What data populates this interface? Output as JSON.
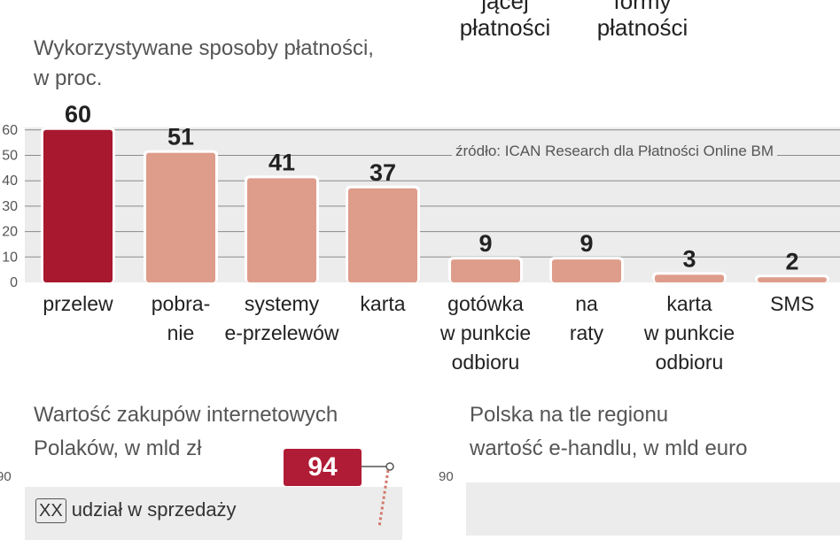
{
  "top": {
    "label1_line1": "jącej",
    "label1_line2": "płatności",
    "label2_line1": "formy",
    "label2_line2": "płatności"
  },
  "chart_data": [
    {
      "type": "bar",
      "title": "Wykorzystywane sposoby płatności,",
      "subtitle": "w proc.",
      "source": "źródło: ICAN Research dla Płatności Online BM",
      "categories": [
        [
          "przelew"
        ],
        [
          "pobra-",
          "nie"
        ],
        [
          "systemy",
          "e-przelewów"
        ],
        [
          "karta"
        ],
        [
          "gotówka",
          "w punkcie",
          "odbioru"
        ],
        [
          "na",
          "raty"
        ],
        [
          "karta",
          "w punkcie",
          "odbioru"
        ],
        [
          "SMS"
        ]
      ],
      "values": [
        60,
        51,
        41,
        37,
        9,
        9,
        3,
        2
      ],
      "yticks": [
        0,
        10,
        20,
        30,
        40,
        50,
        60
      ],
      "ytick_labels": [
        "0",
        "10",
        "20",
        "30",
        "40",
        "50",
        "60"
      ],
      "ylim": [
        0,
        60
      ],
      "highlight_color": "#a8182f",
      "bar_color": "#de9c8a",
      "grid": true
    },
    {
      "type": "line",
      "title": "Wartość zakupów internetowych",
      "subtitle": "Polaków, w mld zł",
      "legend": "udział w sprzedaży",
      "legend_box": "XX",
      "highlight_value": "94",
      "ytick_label": "90"
    },
    {
      "type": "bar",
      "title": "Polska na tle regionu",
      "subtitle": "wartość e-handlu, w mld euro",
      "ytick_label": "90"
    }
  ]
}
